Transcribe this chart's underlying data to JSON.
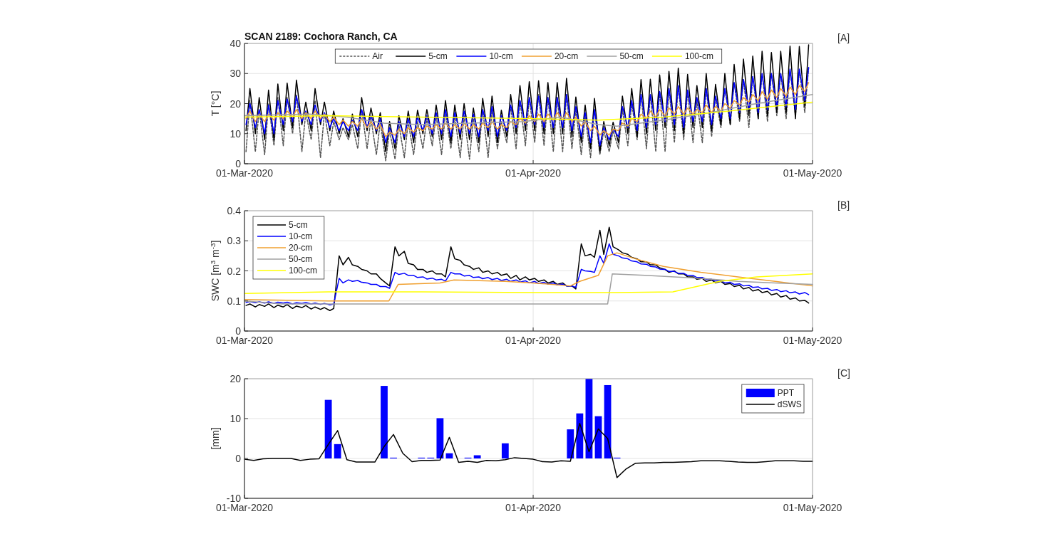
{
  "chart_data": [
    {
      "type": "line",
      "title": "SCAN 2189: Cochora Ranch, CA",
      "ylabel": "T [°C]",
      "annotations": [
        "[A]"
      ],
      "grid": true,
      "legend": "top",
      "xlim": [
        "2020-03-01",
        "2020-05-01"
      ],
      "xticks": [
        {
          "value": "2020-03-01",
          "label": "01-Mar-2020"
        },
        {
          "value": "2020-04-01",
          "label": "01-Apr-2020"
        },
        {
          "value": "2020-05-01",
          "label": "01-May-2020"
        }
      ],
      "ylim": [
        0,
        40
      ],
      "yticks": [
        0,
        10,
        20,
        30,
        40
      ],
      "x": [
        "2020-03-01T04:00",
        "2020-03-01T14:00",
        "2020-03-02T04:00",
        "2020-03-02T14:00",
        "2020-03-03T04:00",
        "2020-03-03T14:00",
        "2020-03-04T04:00",
        "2020-03-04T14:00",
        "2020-03-05T04:00",
        "2020-03-05T14:00",
        "2020-03-06T04:00",
        "2020-03-06T14:00",
        "2020-03-07T04:00",
        "2020-03-07T14:00",
        "2020-03-08T04:00",
        "2020-03-08T14:00",
        "2020-03-09T04:00",
        "2020-03-09T14:00",
        "2020-03-10T04:00",
        "2020-03-10T14:00",
        "2020-03-11T04:00",
        "2020-03-11T14:00",
        "2020-03-12T04:00",
        "2020-03-12T14:00",
        "2020-03-13T04:00",
        "2020-03-13T14:00",
        "2020-03-14T04:00",
        "2020-03-14T14:00",
        "2020-03-15T04:00",
        "2020-03-15T14:00",
        "2020-03-16T04:00",
        "2020-03-16T14:00",
        "2020-03-17T04:00",
        "2020-03-17T14:00",
        "2020-03-18T04:00",
        "2020-03-18T14:00",
        "2020-03-19T04:00",
        "2020-03-19T14:00",
        "2020-03-20T04:00",
        "2020-03-20T14:00",
        "2020-03-21T04:00",
        "2020-03-21T14:00",
        "2020-03-22T04:00",
        "2020-03-22T14:00",
        "2020-03-23T04:00",
        "2020-03-23T14:00",
        "2020-03-24T04:00",
        "2020-03-24T14:00",
        "2020-03-25T04:00",
        "2020-03-25T14:00",
        "2020-03-26T04:00",
        "2020-03-26T14:00",
        "2020-03-27T04:00",
        "2020-03-27T14:00",
        "2020-03-28T04:00",
        "2020-03-28T14:00",
        "2020-03-29T04:00",
        "2020-03-29T14:00",
        "2020-03-30T04:00",
        "2020-03-30T14:00",
        "2020-03-31T04:00",
        "2020-03-31T14:00",
        "2020-04-01T04:00",
        "2020-04-01T14:00",
        "2020-04-02T04:00",
        "2020-04-02T14:00",
        "2020-04-03T04:00",
        "2020-04-03T14:00",
        "2020-04-04T04:00",
        "2020-04-04T14:00",
        "2020-04-05T04:00",
        "2020-04-05T14:00",
        "2020-04-06T04:00",
        "2020-04-06T14:00",
        "2020-04-07T04:00",
        "2020-04-07T14:00",
        "2020-04-08T04:00",
        "2020-04-08T14:00",
        "2020-04-09T04:00",
        "2020-04-09T14:00",
        "2020-04-10T04:00",
        "2020-04-10T14:00",
        "2020-04-11T04:00",
        "2020-04-11T14:00",
        "2020-04-12T04:00",
        "2020-04-12T14:00",
        "2020-04-13T04:00",
        "2020-04-13T14:00",
        "2020-04-14T04:00",
        "2020-04-14T14:00",
        "2020-04-15T04:00",
        "2020-04-15T14:00",
        "2020-04-16T04:00",
        "2020-04-16T14:00",
        "2020-04-17T04:00",
        "2020-04-17T14:00",
        "2020-04-18T04:00",
        "2020-04-18T14:00",
        "2020-04-19T04:00",
        "2020-04-19T14:00",
        "2020-04-20T04:00",
        "2020-04-20T14:00",
        "2020-04-21T04:00",
        "2020-04-21T14:00",
        "2020-04-22T04:00",
        "2020-04-22T14:00",
        "2020-04-23T04:00",
        "2020-04-23T14:00",
        "2020-04-24T04:00",
        "2020-04-24T14:00",
        "2020-04-25T04:00",
        "2020-04-25T14:00",
        "2020-04-26T04:00",
        "2020-04-26T14:00",
        "2020-04-27T04:00",
        "2020-04-27T14:00",
        "2020-04-28T04:00",
        "2020-04-28T14:00",
        "2020-04-29T04:00",
        "2020-04-29T14:00",
        "2020-04-30T04:00",
        "2020-04-30T14:00"
      ],
      "series": [
        {
          "name": "Air",
          "color": "#555555",
          "line_style": "dashed",
          "values": [
            4,
            21,
            4,
            18,
            3,
            20,
            6,
            22,
            6,
            22,
            10,
            23,
            4,
            17,
            8,
            21,
            2,
            17,
            6,
            14,
            8,
            12,
            8,
            13,
            5,
            18,
            5,
            15,
            3,
            14,
            1,
            11,
            1.5,
            13,
            2,
            14,
            3,
            14,
            5,
            15,
            6,
            16,
            3,
            17,
            5,
            16,
            2,
            16,
            1.5,
            15,
            4,
            18,
            2,
            18,
            5,
            14,
            7,
            19,
            5,
            21,
            6,
            22,
            7,
            23,
            6,
            22,
            4,
            22,
            4,
            23,
            5,
            18,
            3,
            16,
            2,
            18,
            3,
            11,
            4,
            11,
            5,
            18,
            6,
            20,
            8,
            23,
            5,
            23,
            4,
            24,
            4,
            25,
            7,
            26,
            8,
            24,
            7,
            21,
            7,
            25,
            9,
            22,
            12,
            25,
            13,
            27,
            14,
            28,
            12,
            29,
            15,
            30,
            14,
            30,
            16,
            30,
            15,
            31,
            16,
            31,
            17,
            32
          ]
        },
        {
          "name": "5-cm",
          "color": "#000000",
          "values": [
            11,
            25,
            10,
            22,
            8,
            24.5,
            8,
            26.5,
            11,
            26.8,
            12,
            27.8,
            13,
            20.5,
            11,
            25,
            13,
            20.5,
            11,
            17.5,
            10,
            15,
            9,
            16.5,
            9,
            22,
            11,
            18.5,
            10,
            17,
            4,
            14,
            5,
            16,
            8,
            17.5,
            7,
            17.8,
            10,
            18,
            9,
            19.5,
            8,
            21,
            7,
            19.5,
            8,
            20,
            8,
            18.5,
            7,
            21.7,
            9,
            22.5,
            7,
            17.8,
            9,
            23,
            10,
            26,
            11,
            27.3,
            11,
            27.6,
            10,
            27,
            10,
            27,
            10,
            28.4,
            9,
            22.2,
            7,
            19.5,
            5,
            21.7,
            4,
            14,
            6,
            13.8,
            7,
            22.5,
            10,
            25,
            9,
            28,
            10,
            28.1,
            11,
            29.5,
            12,
            30.7,
            11,
            31.8,
            10,
            29.7,
            12,
            26,
            12,
            30,
            11,
            26.4,
            13,
            30,
            13,
            33,
            15,
            34.8,
            16,
            35.8,
            15,
            37.4,
            16,
            37,
            17,
            37.4,
            17,
            39.1,
            15,
            39,
            19,
            39.5
          ]
        },
        {
          "name": "10-cm",
          "color": "#0000ff",
          "values": [
            13,
            20,
            12,
            18,
            10,
            19.5,
            10,
            21,
            13,
            21.5,
            14,
            22.5,
            14,
            17.5,
            13,
            19.5,
            14,
            17,
            12,
            15,
            11,
            14,
            11,
            14.5,
            11,
            18,
            12,
            16,
            11,
            15,
            7,
            12,
            7,
            14,
            9,
            15,
            9,
            15.5,
            11,
            16,
            10,
            17,
            10,
            18,
            9,
            17,
            10,
            17.5,
            10,
            16.5,
            9,
            18,
            11,
            19,
            9,
            16,
            11,
            19.5,
            12,
            21,
            13,
            22,
            13,
            22.5,
            12,
            22,
            12,
            22,
            12,
            23,
            11,
            19,
            9,
            17,
            7,
            18,
            6,
            12,
            8,
            11.5,
            9,
            19,
            12,
            21,
            11,
            23,
            12,
            23,
            13,
            24,
            14,
            25,
            13,
            26,
            12,
            24.5,
            14,
            22,
            14,
            25,
            13,
            22.5,
            15,
            25,
            15,
            27,
            17,
            28,
            18,
            29,
            17,
            30,
            18,
            30,
            19,
            30,
            19,
            31.5,
            18,
            31.5,
            21,
            32
          ]
        },
        {
          "name": "20-cm",
          "color": "#f0a030",
          "values": [
            15,
            17.5,
            14,
            16.5,
            14,
            16.5,
            14.5,
            17,
            15,
            17.5,
            15.5,
            18,
            15,
            17,
            15,
            17.5,
            15,
            16.5,
            14,
            15.5,
            13,
            14.5,
            12.5,
            14,
            12.5,
            15,
            12,
            14,
            11.5,
            13,
            9,
            10.5,
            9.5,
            11.5,
            10,
            12,
            10.5,
            12,
            11,
            12.5,
            11.5,
            13,
            11.5,
            13.5,
            11.5,
            13,
            11.5,
            13.5,
            11.5,
            13,
            11.5,
            13.5,
            12,
            14,
            11.5,
            13,
            12,
            14,
            13,
            15,
            13.5,
            16,
            14,
            16.5,
            14,
            16.5,
            14.5,
            17,
            14.5,
            17,
            14,
            15.5,
            12.5,
            14,
            11,
            12.5,
            9.5,
            11,
            9.5,
            11.5,
            11,
            13.5,
            12.5,
            15,
            14,
            16.5,
            15,
            17.5,
            15.5,
            18,
            16,
            18.5,
            16.5,
            19,
            16.5,
            18.5,
            16.5,
            18,
            17,
            19.5,
            17,
            19,
            17.5,
            20,
            18.5,
            21,
            19.5,
            22,
            20.5,
            23,
            21,
            24,
            21.5,
            24.5,
            22,
            25,
            22.5,
            25.5,
            23,
            26,
            24,
            27
          ]
        },
        {
          "name": "50-cm",
          "color": "#a0a0a0",
          "x": [
            "2020-03-01",
            "2020-03-08",
            "2020-03-12",
            "2020-03-16",
            "2020-03-20",
            "2020-03-31",
            "2020-04-04",
            "2020-04-08",
            "2020-04-10",
            "2020-04-15",
            "2020-04-20",
            "2020-04-25",
            "2020-05-01"
          ],
          "values": [
            16,
            16.5,
            15.5,
            13.5,
            13,
            14,
            15.5,
            13,
            12.5,
            14.5,
            17,
            20,
            23
          ]
        },
        {
          "name": "100-cm",
          "color": "#ffff00",
          "x": [
            "2020-03-01",
            "2020-03-10",
            "2020-03-20",
            "2020-04-01",
            "2020-04-08",
            "2020-04-15",
            "2020-04-22",
            "2020-05-01"
          ],
          "values": [
            15.5,
            16,
            15.5,
            15,
            14.5,
            15.5,
            17.5,
            20.5
          ]
        }
      ]
    },
    {
      "type": "line",
      "ylabel": "SWC [m$^{3}$ m$^{-3}$]",
      "annotations": [
        "[B]"
      ],
      "grid": true,
      "legend": "top left",
      "xlim": [
        "2020-03-01",
        "2020-05-01"
      ],
      "xticks": [
        {
          "value": "2020-03-01",
          "label": "01-Mar-2020"
        },
        {
          "value": "2020-04-01",
          "label": "01-Apr-2020"
        },
        {
          "value": "2020-05-01",
          "label": "01-May-2020"
        }
      ],
      "ylim": [
        0,
        0.4
      ],
      "yticks": [
        0,
        0.1,
        0.2,
        0.3,
        0.4
      ],
      "x": [
        "2020-03-01T04:00",
        "2020-03-01T14:00",
        "2020-03-02T04:00",
        "2020-03-02T14:00",
        "2020-03-03T04:00",
        "2020-03-03T14:00",
        "2020-03-04T04:00",
        "2020-03-04T14:00",
        "2020-03-05T04:00",
        "2020-03-05T14:00",
        "2020-03-06T04:00",
        "2020-03-06T14:00",
        "2020-03-07T04:00",
        "2020-03-07T14:00",
        "2020-03-08T04:00",
        "2020-03-08T14:00",
        "2020-03-09T04:00",
        "2020-03-09T14:00",
        "2020-03-10T04:00",
        "2020-03-10T14:00",
        "2020-03-11T04:00",
        "2020-03-11T14:00",
        "2020-03-12T04:00",
        "2020-03-12T14:00",
        "2020-03-13T04:00",
        "2020-03-13T14:00",
        "2020-03-14T04:00",
        "2020-03-14T14:00",
        "2020-03-15T04:00",
        "2020-03-15T14:00",
        "2020-03-16T04:00",
        "2020-03-16T14:00",
        "2020-03-17T04:00",
        "2020-03-17T14:00",
        "2020-03-18T04:00",
        "2020-03-18T14:00",
        "2020-03-19T04:00",
        "2020-03-19T14:00",
        "2020-03-20T04:00",
        "2020-03-20T14:00",
        "2020-03-21T04:00",
        "2020-03-21T14:00",
        "2020-03-22T04:00",
        "2020-03-22T14:00",
        "2020-03-23T04:00",
        "2020-03-23T14:00",
        "2020-03-24T04:00",
        "2020-03-24T14:00",
        "2020-03-25T04:00",
        "2020-03-25T14:00",
        "2020-03-26T04:00",
        "2020-03-26T14:00",
        "2020-03-27T04:00",
        "2020-03-27T14:00",
        "2020-03-28T04:00",
        "2020-03-28T14:00",
        "2020-03-29T04:00",
        "2020-03-29T14:00",
        "2020-03-30T04:00",
        "2020-03-30T14:00",
        "2020-03-31T04:00",
        "2020-03-31T14:00",
        "2020-04-01T04:00",
        "2020-04-01T14:00",
        "2020-04-02T04:00",
        "2020-04-02T14:00",
        "2020-04-03T04:00",
        "2020-04-03T14:00",
        "2020-04-04T04:00",
        "2020-04-04T14:00",
        "2020-04-05T04:00",
        "2020-04-05T14:00",
        "2020-04-06T04:00",
        "2020-04-06T14:00",
        "2020-04-07T04:00",
        "2020-04-07T14:00",
        "2020-04-08T04:00",
        "2020-04-08T14:00",
        "2020-04-09T04:00",
        "2020-04-09T14:00",
        "2020-04-10T04:00",
        "2020-04-10T14:00",
        "2020-04-11T04:00",
        "2020-04-11T14:00",
        "2020-04-12T04:00",
        "2020-04-12T14:00",
        "2020-04-13T04:00",
        "2020-04-13T14:00",
        "2020-04-14T04:00",
        "2020-04-14T14:00",
        "2020-04-15T04:00",
        "2020-04-15T14:00",
        "2020-04-16T04:00",
        "2020-04-16T14:00",
        "2020-04-17T04:00",
        "2020-04-17T14:00",
        "2020-04-18T04:00",
        "2020-04-18T14:00",
        "2020-04-19T04:00",
        "2020-04-19T14:00",
        "2020-04-20T04:00",
        "2020-04-20T14:00",
        "2020-04-21T04:00",
        "2020-04-21T14:00",
        "2020-04-22T04:00",
        "2020-04-22T14:00",
        "2020-04-23T04:00",
        "2020-04-23T14:00",
        "2020-04-24T04:00",
        "2020-04-24T14:00",
        "2020-04-25T04:00",
        "2020-04-25T14:00",
        "2020-04-26T04:00",
        "2020-04-26T14:00",
        "2020-04-27T04:00",
        "2020-04-27T14:00",
        "2020-04-28T04:00",
        "2020-04-28T14:00",
        "2020-04-29T04:00",
        "2020-04-29T14:00",
        "2020-04-30T04:00",
        "2020-04-30T14:00"
      ],
      "series": [
        {
          "name": "5-cm",
          "color": "#000000",
          "values": [
            0.085,
            0.09,
            0.08,
            0.088,
            0.082,
            0.09,
            0.078,
            0.086,
            0.08,
            0.088,
            0.075,
            0.083,
            0.078,
            0.085,
            0.073,
            0.08,
            0.072,
            0.078,
            0.068,
            0.075,
            0.25,
            0.22,
            0.245,
            0.22,
            0.215,
            0.205,
            0.2,
            0.19,
            0.19,
            0.175,
            0.16,
            0.15,
            0.28,
            0.25,
            0.265,
            0.225,
            0.22,
            0.205,
            0.205,
            0.195,
            0.2,
            0.19,
            0.19,
            0.18,
            0.28,
            0.24,
            0.235,
            0.22,
            0.215,
            0.205,
            0.21,
            0.195,
            0.2,
            0.19,
            0.195,
            0.185,
            0.19,
            0.175,
            0.185,
            0.17,
            0.18,
            0.17,
            0.175,
            0.165,
            0.17,
            0.16,
            0.165,
            0.155,
            0.16,
            0.15,
            0.15,
            0.14,
            0.29,
            0.25,
            0.255,
            0.245,
            0.335,
            0.255,
            0.345,
            0.28,
            0.27,
            0.26,
            0.255,
            0.245,
            0.24,
            0.23,
            0.23,
            0.22,
            0.22,
            0.21,
            0.205,
            0.195,
            0.2,
            0.19,
            0.19,
            0.18,
            0.18,
            0.172,
            0.175,
            0.165,
            0.17,
            0.16,
            0.165,
            0.155,
            0.158,
            0.148,
            0.152,
            0.14,
            0.145,
            0.133,
            0.138,
            0.128,
            0.132,
            0.12,
            0.125,
            0.113,
            0.118,
            0.106,
            0.11,
            0.1,
            0.102,
            0.093
          ]
        },
        {
          "name": "10-cm",
          "color": "#0000ff",
          "values": [
            0.095,
            0.098,
            0.094,
            0.097,
            0.093,
            0.097,
            0.092,
            0.096,
            0.093,
            0.096,
            0.09,
            0.094,
            0.092,
            0.095,
            0.09,
            0.093,
            0.089,
            0.092,
            0.087,
            0.09,
            0.175,
            0.16,
            0.17,
            0.165,
            0.168,
            0.162,
            0.16,
            0.155,
            0.155,
            0.148,
            0.148,
            0.142,
            0.195,
            0.188,
            0.192,
            0.185,
            0.185,
            0.178,
            0.18,
            0.173,
            0.176,
            0.17,
            0.172,
            0.166,
            0.195,
            0.19,
            0.19,
            0.183,
            0.185,
            0.178,
            0.18,
            0.174,
            0.178,
            0.171,
            0.175,
            0.168,
            0.172,
            0.165,
            0.17,
            0.163,
            0.167,
            0.16,
            0.165,
            0.158,
            0.162,
            0.156,
            0.16,
            0.153,
            0.156,
            0.15,
            0.15,
            0.145,
            0.205,
            0.2,
            0.198,
            0.195,
            0.25,
            0.225,
            0.29,
            0.255,
            0.25,
            0.243,
            0.24,
            0.233,
            0.23,
            0.223,
            0.222,
            0.215,
            0.213,
            0.206,
            0.205,
            0.198,
            0.198,
            0.192,
            0.192,
            0.185,
            0.185,
            0.178,
            0.178,
            0.172,
            0.172,
            0.166,
            0.167,
            0.16,
            0.162,
            0.155,
            0.157,
            0.15,
            0.152,
            0.145,
            0.147,
            0.14,
            0.142,
            0.135,
            0.138,
            0.131,
            0.134,
            0.127,
            0.13,
            0.123,
            0.128,
            0.121
          ]
        },
        {
          "name": "20-cm",
          "color": "#f0a030",
          "x": [
            "2020-03-01",
            "2020-03-10",
            "2020-03-16T12:00",
            "2020-03-17T12:00",
            "2020-03-22",
            "2020-03-23T12:00",
            "2020-03-29",
            "2020-04-01",
            "2020-04-05",
            "2020-04-06",
            "2020-04-08",
            "2020-04-09",
            "2020-04-10",
            "2020-04-12",
            "2020-04-15",
            "2020-04-19",
            "2020-04-23",
            "2020-04-27",
            "2020-05-01"
          ],
          "values": [
            0.105,
            0.1,
            0.1,
            0.155,
            0.16,
            0.17,
            0.165,
            0.16,
            0.15,
            0.165,
            0.185,
            0.25,
            0.26,
            0.24,
            0.215,
            0.195,
            0.18,
            0.165,
            0.15
          ]
        },
        {
          "name": "50-cm",
          "color": "#a0a0a0",
          "x": [
            "2020-03-01",
            "2020-03-05",
            "2020-04-09",
            "2020-04-09T12:00",
            "2020-04-13",
            "2020-04-19",
            "2020-04-23",
            "2020-04-27",
            "2020-05-01"
          ],
          "values": [
            0.1,
            0.09,
            0.09,
            0.19,
            0.185,
            0.175,
            0.165,
            0.16,
            0.155
          ]
        },
        {
          "name": "100-cm",
          "color": "#ffff00",
          "x": [
            "2020-03-01",
            "2020-03-10",
            "2020-03-20",
            "2020-04-01",
            "2020-04-10",
            "2020-04-16",
            "2020-04-21",
            "2020-04-25",
            "2020-05-01"
          ],
          "values": [
            0.125,
            0.13,
            0.13,
            0.128,
            0.128,
            0.13,
            0.165,
            0.18,
            0.19
          ]
        }
      ]
    },
    {
      "type": "bar",
      "ylabel": "[mm]",
      "annotations": [
        "[C]"
      ],
      "grid": true,
      "legend": "top right",
      "xlim": [
        "2020-03-01",
        "2020-05-01"
      ],
      "xticks": [
        {
          "value": "2020-03-01",
          "label": "01-Mar-2020"
        },
        {
          "value": "2020-04-01",
          "label": "01-Apr-2020"
        },
        {
          "value": "2020-05-01",
          "label": "01-May-2020"
        }
      ],
      "ylim": [
        -10,
        20
      ],
      "yticks": [
        -10,
        0,
        10,
        20
      ],
      "x": [
        "2020-03-01",
        "2020-03-02",
        "2020-03-03",
        "2020-03-04",
        "2020-03-05",
        "2020-03-06",
        "2020-03-07",
        "2020-03-08",
        "2020-03-09",
        "2020-03-10",
        "2020-03-11",
        "2020-03-12",
        "2020-03-13",
        "2020-03-14",
        "2020-03-15",
        "2020-03-16",
        "2020-03-17",
        "2020-03-18",
        "2020-03-19",
        "2020-03-20",
        "2020-03-21",
        "2020-03-22",
        "2020-03-23",
        "2020-03-24",
        "2020-03-25",
        "2020-03-26",
        "2020-03-27",
        "2020-03-28",
        "2020-03-29",
        "2020-03-30",
        "2020-03-31",
        "2020-04-01",
        "2020-04-02",
        "2020-04-03",
        "2020-04-04",
        "2020-04-05",
        "2020-04-06",
        "2020-04-07",
        "2020-04-08",
        "2020-04-09",
        "2020-04-10",
        "2020-04-11",
        "2020-04-12",
        "2020-04-13",
        "2020-04-14",
        "2020-04-15",
        "2020-04-16",
        "2020-04-17",
        "2020-04-18",
        "2020-04-19",
        "2020-04-20",
        "2020-04-21",
        "2020-04-22",
        "2020-04-23",
        "2020-04-24",
        "2020-04-25",
        "2020-04-26",
        "2020-04-27",
        "2020-04-28",
        "2020-04-29",
        "2020-04-30",
        "2020-05-01"
      ],
      "series": [
        {
          "name": "PPT",
          "color": "#0000ff",
          "x": [
            "2020-03-10",
            "2020-03-11",
            "2020-03-16",
            "2020-03-17",
            "2020-03-20",
            "2020-03-21",
            "2020-03-22",
            "2020-03-23",
            "2020-03-25",
            "2020-03-26",
            "2020-03-29",
            "2020-04-05",
            "2020-04-06",
            "2020-04-07",
            "2020-04-08",
            "2020-04-09",
            "2020-04-10"
          ],
          "values": [
            14.7,
            3.6,
            18.2,
            0.2,
            0.2,
            0.2,
            10.1,
            1.3,
            0.2,
            0.8,
            3.8,
            7.3,
            11.3,
            20,
            10.6,
            18.4,
            0.2
          ]
        },
        {
          "name": "dSWS",
          "type": "line",
          "color": "#000000",
          "values": [
            -0.2,
            -0.5,
            -0.1,
            0,
            0,
            0,
            -0.5,
            -0.2,
            -0.1,
            3.5,
            7,
            -0.3,
            -0.9,
            -0.9,
            -0.9,
            3,
            6,
            1.3,
            -0.8,
            -0.5,
            -0.5,
            -0.4,
            5.3,
            -1,
            -0.7,
            -1,
            -0.5,
            -0.6,
            -0.3,
            0.2,
            0,
            -0.2,
            -0.8,
            -0.9,
            -0.6,
            -0.7,
            8.8,
            1.7,
            7.4,
            5,
            -4.8,
            -2.6,
            -1.2,
            -1.1,
            -1.1,
            -1,
            -1,
            -0.9,
            -0.8,
            -0.6,
            -0.6,
            -0.6,
            -0.7,
            -0.9,
            -1,
            -1,
            -0.8,
            -0.6,
            -0.6,
            -0.6,
            -0.7,
            -0.7
          ]
        }
      ]
    }
  ]
}
